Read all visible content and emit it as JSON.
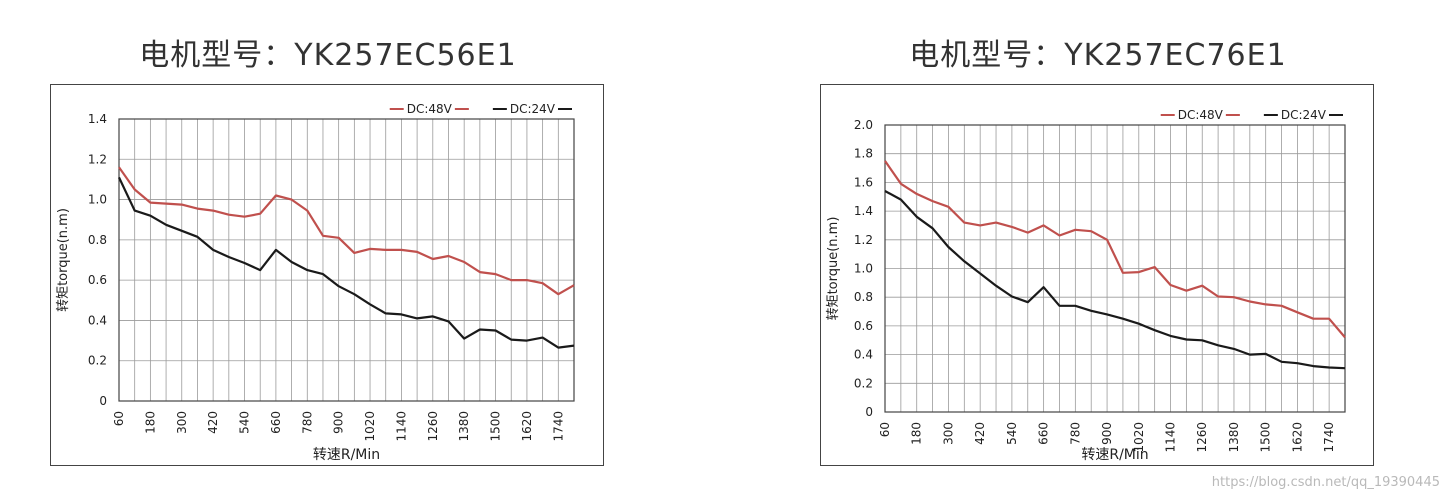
{
  "watermark": "https://blog.csdn.net/qq_19390445",
  "chart_data": [
    {
      "type": "line",
      "title": "电机型号：YK257EC56E1",
      "xlabel": "转速R/Min",
      "ylabel": "转矩torque(n.m)",
      "xlim": [
        60,
        1800
      ],
      "ylim": [
        0,
        1.4
      ],
      "yticks": [
        "0",
        "0.2",
        "0.4",
        "0.6",
        "0.8",
        "1.0",
        "1.2",
        "1.4"
      ],
      "yticks_values": [
        0,
        0.2,
        0.4,
        0.6,
        0.8,
        1.0,
        1.2,
        1.4
      ],
      "xticks": [
        "60",
        "180",
        "300",
        "420",
        "540",
        "660",
        "780",
        "900",
        "1020",
        "1140",
        "1260",
        "1380",
        "1500",
        "1620",
        "1740"
      ],
      "xticks_values": [
        60,
        180,
        300,
        420,
        540,
        660,
        780,
        900,
        1020,
        1140,
        1260,
        1380,
        1500,
        1620,
        1740
      ],
      "grid": true,
      "legend_position": "top-right",
      "series": [
        {
          "name": "DC:48V",
          "color": "#c0504d",
          "x": [
            60,
            120,
            180,
            240,
            300,
            360,
            420,
            480,
            540,
            600,
            660,
            720,
            780,
            840,
            900,
            960,
            1020,
            1080,
            1140,
            1200,
            1260,
            1320,
            1380,
            1440,
            1500,
            1560,
            1620,
            1680,
            1740,
            1800
          ],
          "values": [
            1.16,
            1.05,
            0.985,
            0.98,
            0.975,
            0.955,
            0.945,
            0.925,
            0.915,
            0.93,
            1.02,
            1.0,
            0.945,
            0.82,
            0.81,
            0.735,
            0.755,
            0.75,
            0.75,
            0.74,
            0.705,
            0.72,
            0.69,
            0.64,
            0.63,
            0.6,
            0.6,
            0.585,
            0.53,
            0.575
          ]
        },
        {
          "name": "DC:24V",
          "color": "#1a1a1a",
          "x": [
            60,
            120,
            180,
            240,
            300,
            360,
            420,
            480,
            540,
            600,
            660,
            720,
            780,
            840,
            900,
            960,
            1020,
            1080,
            1140,
            1200,
            1260,
            1320,
            1380,
            1440,
            1500,
            1560,
            1620,
            1680,
            1740,
            1800
          ],
          "values": [
            1.11,
            0.945,
            0.92,
            0.875,
            0.845,
            0.815,
            0.75,
            0.715,
            0.685,
            0.65,
            0.75,
            0.69,
            0.65,
            0.63,
            0.57,
            0.53,
            0.48,
            0.435,
            0.43,
            0.41,
            0.42,
            0.395,
            0.31,
            0.355,
            0.35,
            0.305,
            0.3,
            0.315,
            0.265,
            0.275
          ]
        }
      ]
    },
    {
      "type": "line",
      "title": "电机型号：YK257EC76E1",
      "xlabel": "转速R/Min",
      "ylabel": "转矩torque(n.m)",
      "xlim": [
        60,
        1800
      ],
      "ylim": [
        0,
        2.0
      ],
      "yticks": [
        "0",
        "0.2",
        "0.4",
        "0.6",
        "0.8",
        "1.0",
        "1.2",
        "1.4",
        "1.6",
        "1.8",
        "2.0"
      ],
      "yticks_values": [
        0,
        0.2,
        0.4,
        0.6,
        0.8,
        1.0,
        1.2,
        1.4,
        1.6,
        1.8,
        2.0
      ],
      "xticks": [
        "60",
        "180",
        "300",
        "420",
        "540",
        "660",
        "780",
        "900",
        "1020",
        "1140",
        "1260",
        "1380",
        "1500",
        "1620",
        "1740"
      ],
      "xticks_values": [
        60,
        180,
        300,
        420,
        540,
        660,
        780,
        900,
        1020,
        1140,
        1260,
        1380,
        1500,
        1620,
        1740
      ],
      "grid": true,
      "legend_position": "top-right",
      "series": [
        {
          "name": "DC:48V",
          "color": "#c0504d",
          "x": [
            60,
            120,
            180,
            240,
            300,
            360,
            420,
            480,
            540,
            600,
            660,
            720,
            780,
            840,
            900,
            960,
            1020,
            1080,
            1140,
            1200,
            1260,
            1320,
            1380,
            1440,
            1500,
            1560,
            1620,
            1680,
            1740,
            1800
          ],
          "values": [
            1.75,
            1.59,
            1.52,
            1.47,
            1.43,
            1.32,
            1.3,
            1.32,
            1.29,
            1.25,
            1.3,
            1.23,
            1.27,
            1.26,
            1.2,
            0.97,
            0.975,
            1.01,
            0.885,
            0.845,
            0.88,
            0.805,
            0.8,
            0.77,
            0.75,
            0.74,
            0.695,
            0.65,
            0.65,
            0.52
          ]
        },
        {
          "name": "DC:24V",
          "color": "#1a1a1a",
          "x": [
            60,
            120,
            180,
            240,
            300,
            360,
            420,
            480,
            540,
            600,
            660,
            720,
            780,
            840,
            900,
            960,
            1020,
            1080,
            1140,
            1200,
            1260,
            1320,
            1380,
            1440,
            1500,
            1560,
            1620,
            1680,
            1740,
            1800
          ],
          "values": [
            1.54,
            1.48,
            1.36,
            1.28,
            1.15,
            1.05,
            0.965,
            0.88,
            0.805,
            0.765,
            0.87,
            0.74,
            0.74,
            0.705,
            0.68,
            0.65,
            0.615,
            0.57,
            0.53,
            0.505,
            0.5,
            0.465,
            0.44,
            0.4,
            0.405,
            0.35,
            0.34,
            0.32,
            0.31,
            0.305
          ]
        }
      ]
    }
  ]
}
